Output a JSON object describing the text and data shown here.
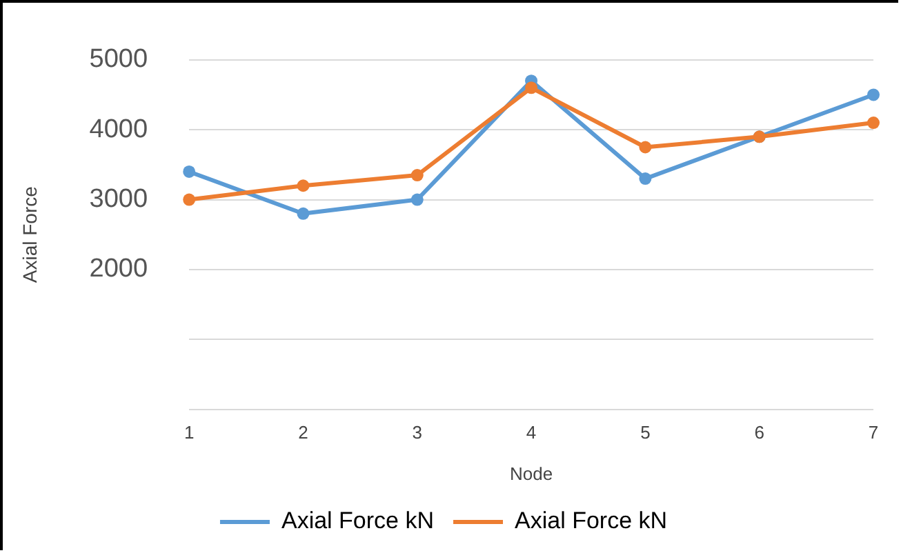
{
  "chart_data": {
    "type": "line",
    "xlabel": "Node",
    "ylabel": "Axial Force",
    "categories": [
      "1",
      "2",
      "3",
      "4",
      "5",
      "6",
      "7"
    ],
    "series": [
      {
        "name": "Axial Force kN",
        "color": "#5b9bd5",
        "values": [
          3400,
          2800,
          3000,
          4700,
          3300,
          3900,
          4500
        ]
      },
      {
        "name": "Axial Force kN",
        "color": "#ed7d31",
        "values": [
          3000,
          3200,
          3350,
          4600,
          3750,
          3900,
          4100
        ]
      }
    ],
    "ylim": [
      0,
      5000
    ],
    "yticks": [
      {
        "value": 0,
        "label": null
      },
      {
        "value": 1000,
        "label": null
      },
      2000,
      3000,
      4000,
      5000
    ],
    "grid": "y",
    "legend": "bottom",
    "marker": "circle",
    "line_style": "solid"
  }
}
